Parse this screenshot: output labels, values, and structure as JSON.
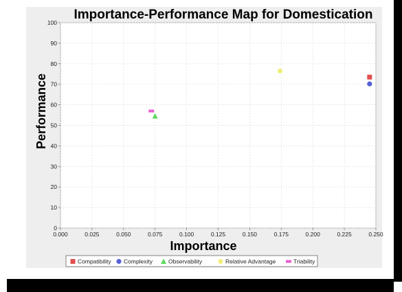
{
  "chart_data": {
    "type": "scatter",
    "title": "Importance-Performance Map for Domestication",
    "xlabel": "Importance",
    "ylabel": "Performance",
    "xlim": [
      0,
      0.25
    ],
    "ylim": [
      0,
      100
    ],
    "x_ticks": [
      "0.000",
      "0.025",
      "0.050",
      "0.075",
      "0.100",
      "0.125",
      "0.150",
      "0.175",
      "0.200",
      "0.225",
      "0.250"
    ],
    "y_ticks": [
      "0",
      "10",
      "20",
      "30",
      "40",
      "50",
      "60",
      "70",
      "80",
      "90",
      "100"
    ],
    "grid": true,
    "legend_position": "bottom",
    "series": [
      {
        "name": "Compatibility",
        "marker": "square",
        "color": "#e0504f",
        "points": [
          {
            "x": 0.245,
            "y": 73.5
          }
        ]
      },
      {
        "name": "Complexity",
        "marker": "circle",
        "color": "#5560d6",
        "points": [
          {
            "x": 0.245,
            "y": 70.2
          }
        ]
      },
      {
        "name": "Observability",
        "marker": "triangle",
        "color": "#58d858",
        "points": [
          {
            "x": 0.075,
            "y": 54.5
          }
        ]
      },
      {
        "name": "Relative Advantage",
        "marker": "circle",
        "color": "#f2ee7a",
        "points": [
          {
            "x": 0.174,
            "y": 76.5
          }
        ]
      },
      {
        "name": "Triability",
        "marker": "dash",
        "color": "#e85ed0",
        "points": [
          {
            "x": 0.072,
            "y": 57.0
          }
        ]
      }
    ]
  }
}
